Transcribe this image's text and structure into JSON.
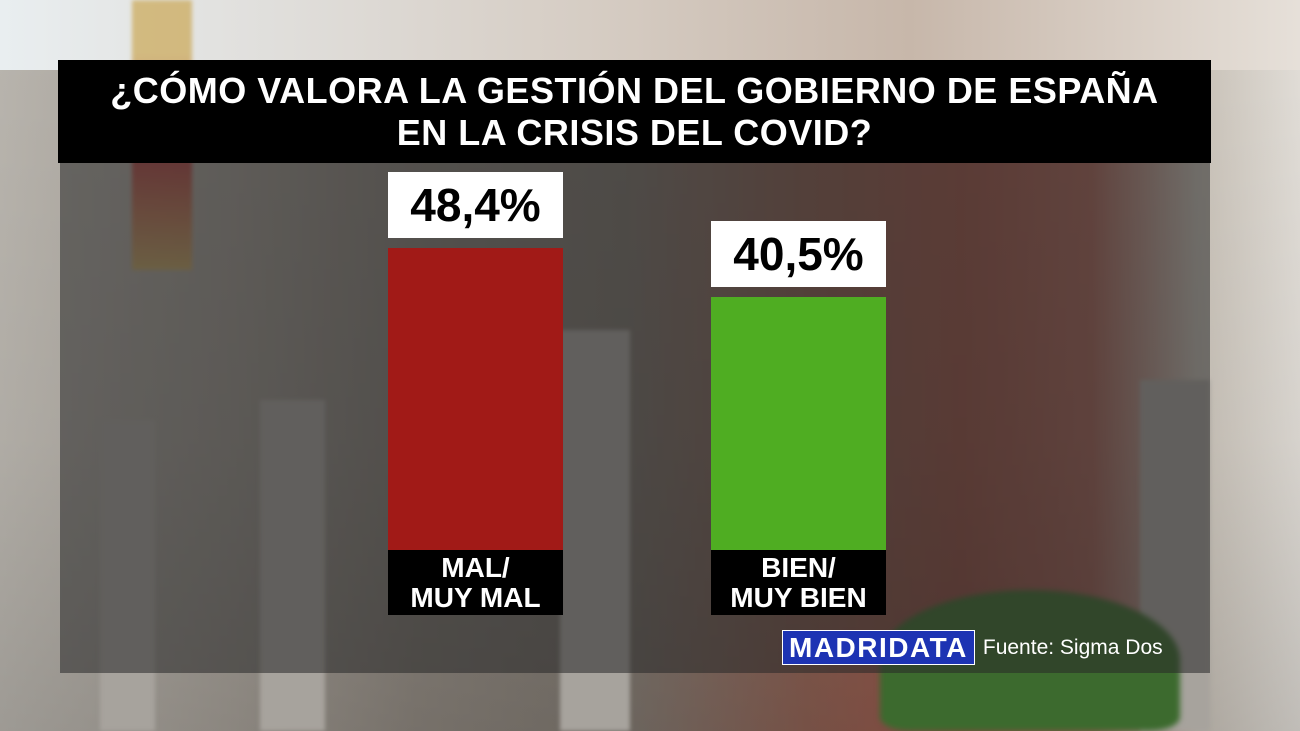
{
  "header": {
    "title_line1": "¿CÓMO VALORA LA GESTIÓN DEL GOBIERNO DE ESPAÑA",
    "title_line2": "EN LA CRISIS DEL COVID?"
  },
  "chart_data": {
    "type": "bar",
    "title": "¿CÓMO VALORA LA GESTIÓN DEL GOBIERNO DE ESPAÑA EN LA CRISIS DEL COVID?",
    "categories": [
      "MAL/ MUY MAL",
      "BIEN/ MUY BIEN"
    ],
    "values": [
      48.4,
      40.5
    ],
    "value_labels": [
      "48,4%",
      "40,5%"
    ],
    "category_lines": [
      [
        "MAL/",
        "MUY MAL"
      ],
      [
        "BIEN/",
        "MUY BIEN"
      ]
    ],
    "colors": [
      "#a11a17",
      "#4fad22"
    ],
    "ylim": [
      0,
      48.4
    ]
  },
  "footer": {
    "brand": "MADRIDATA",
    "source": "Fuente: Sigma Dos"
  }
}
